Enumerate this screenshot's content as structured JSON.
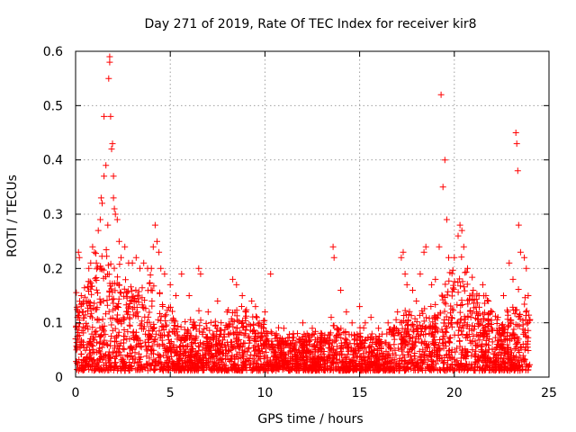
{
  "chart_data": {
    "type": "scatter",
    "title": "Day 271 of 2019, Rate Of TEC Index for receiver kir8",
    "xlabel": "GPS time / hours",
    "ylabel": "ROTI / TECUs",
    "xlim": [
      0,
      25
    ],
    "ylim": [
      0,
      0.6
    ],
    "xticks": [
      0,
      5,
      10,
      15,
      20,
      25
    ],
    "yticks": [
      0,
      0.1,
      0.2,
      0.3,
      0.4,
      0.5,
      0.6
    ],
    "xtick_labels": [
      "0",
      "5",
      "10",
      "15",
      "20",
      "25"
    ],
    "ytick_labels": [
      "0",
      "0.1",
      "0.2",
      "0.3",
      "0.4",
      "0.5",
      "0.6"
    ],
    "grid": true,
    "marker": "+",
    "color": "#ff0000",
    "series": [
      {
        "name": "ROTI",
        "points": [
          [
            0.1,
            0.11
          ],
          [
            0.15,
            0.23
          ],
          [
            0.2,
            0.22
          ],
          [
            0.3,
            0.15
          ],
          [
            0.4,
            0.12
          ],
          [
            0.5,
            0.09
          ],
          [
            0.6,
            0.14
          ],
          [
            0.7,
            0.2
          ],
          [
            0.8,
            0.21
          ],
          [
            0.9,
            0.24
          ],
          [
            1.0,
            0.23
          ],
          [
            1.1,
            0.21
          ],
          [
            1.2,
            0.27
          ],
          [
            1.3,
            0.29
          ],
          [
            1.35,
            0.33
          ],
          [
            1.4,
            0.32
          ],
          [
            1.5,
            0.37
          ],
          [
            1.5,
            0.48
          ],
          [
            1.6,
            0.39
          ],
          [
            1.7,
            0.28
          ],
          [
            1.75,
            0.55
          ],
          [
            1.8,
            0.59
          ],
          [
            1.8,
            0.58
          ],
          [
            1.85,
            0.48
          ],
          [
            1.9,
            0.42
          ],
          [
            1.95,
            0.43
          ],
          [
            2.0,
            0.33
          ],
          [
            2.0,
            0.37
          ],
          [
            2.05,
            0.31
          ],
          [
            2.1,
            0.3
          ],
          [
            2.2,
            0.29
          ],
          [
            2.3,
            0.25
          ],
          [
            2.4,
            0.22
          ],
          [
            2.6,
            0.24
          ],
          [
            2.8,
            0.21
          ],
          [
            3.0,
            0.21
          ],
          [
            3.2,
            0.22
          ],
          [
            3.4,
            0.2
          ],
          [
            3.6,
            0.21
          ],
          [
            3.8,
            0.2
          ],
          [
            4.0,
            0.2
          ],
          [
            4.1,
            0.24
          ],
          [
            4.2,
            0.28
          ],
          [
            4.3,
            0.25
          ],
          [
            4.4,
            0.23
          ],
          [
            4.5,
            0.2
          ],
          [
            4.7,
            0.19
          ],
          [
            5.0,
            0.17
          ],
          [
            5.3,
            0.15
          ],
          [
            5.6,
            0.19
          ],
          [
            6.0,
            0.15
          ],
          [
            6.5,
            0.2
          ],
          [
            6.6,
            0.19
          ],
          [
            7.0,
            0.12
          ],
          [
            7.5,
            0.14
          ],
          [
            8.0,
            0.12
          ],
          [
            8.3,
            0.18
          ],
          [
            8.5,
            0.17
          ],
          [
            8.8,
            0.15
          ],
          [
            9.0,
            0.12
          ],
          [
            9.3,
            0.14
          ],
          [
            9.5,
            0.13
          ],
          [
            9.7,
            0.1
          ],
          [
            10.0,
            0.12
          ],
          [
            10.3,
            0.19
          ],
          [
            10.6,
            0.08
          ],
          [
            11.0,
            0.09
          ],
          [
            11.5,
            0.08
          ],
          [
            12.0,
            0.1
          ],
          [
            12.5,
            0.09
          ],
          [
            13.0,
            0.08
          ],
          [
            13.5,
            0.11
          ],
          [
            13.6,
            0.24
          ],
          [
            13.65,
            0.22
          ],
          [
            13.8,
            0.09
          ],
          [
            14.0,
            0.16
          ],
          [
            14.3,
            0.12
          ],
          [
            14.6,
            0.1
          ],
          [
            15.0,
            0.13
          ],
          [
            15.3,
            0.1
          ],
          [
            15.6,
            0.11
          ],
          [
            16.0,
            0.09
          ],
          [
            16.5,
            0.1
          ],
          [
            17.0,
            0.12
          ],
          [
            17.2,
            0.22
          ],
          [
            17.3,
            0.23
          ],
          [
            17.4,
            0.19
          ],
          [
            17.5,
            0.17
          ],
          [
            17.8,
            0.16
          ],
          [
            18.0,
            0.14
          ],
          [
            18.2,
            0.19
          ],
          [
            18.4,
            0.23
          ],
          [
            18.5,
            0.24
          ],
          [
            18.8,
            0.17
          ],
          [
            19.0,
            0.18
          ],
          [
            19.2,
            0.24
          ],
          [
            19.3,
            0.52
          ],
          [
            19.4,
            0.35
          ],
          [
            19.5,
            0.4
          ],
          [
            19.6,
            0.29
          ],
          [
            19.7,
            0.22
          ],
          [
            20.0,
            0.22
          ],
          [
            20.2,
            0.26
          ],
          [
            20.3,
            0.28
          ],
          [
            20.4,
            0.27
          ],
          [
            20.5,
            0.24
          ],
          [
            20.7,
            0.2
          ],
          [
            21.0,
            0.16
          ],
          [
            21.3,
            0.15
          ],
          [
            21.5,
            0.17
          ],
          [
            21.8,
            0.14
          ],
          [
            22.0,
            0.12
          ],
          [
            22.3,
            0.11
          ],
          [
            22.6,
            0.15
          ],
          [
            22.9,
            0.21
          ],
          [
            23.1,
            0.18
          ],
          [
            23.25,
            0.45
          ],
          [
            23.3,
            0.43
          ],
          [
            23.35,
            0.38
          ],
          [
            23.4,
            0.28
          ],
          [
            23.5,
            0.23
          ],
          [
            23.7,
            0.22
          ],
          [
            23.8,
            0.2
          ],
          [
            23.9,
            0.15
          ]
        ]
      }
    ],
    "density_envelope": {
      "x_hours": [
        0,
        0.5,
        1,
        1.5,
        2,
        2.5,
        3,
        3.5,
        4,
        4.5,
        5,
        5.5,
        6,
        6.5,
        7,
        7.5,
        8,
        8.5,
        9,
        9.5,
        10,
        10.5,
        11,
        11.5,
        12,
        12.5,
        13,
        13.5,
        14,
        14.5,
        15,
        15.5,
        16,
        16.5,
        17,
        17.5,
        18,
        18.5,
        19,
        19.5,
        20,
        20.5,
        21,
        21.5,
        22,
        22.5,
        23,
        23.5,
        24
      ],
      "roti_upper": [
        0.14,
        0.13,
        0.17,
        0.2,
        0.19,
        0.16,
        0.15,
        0.14,
        0.15,
        0.13,
        0.1,
        0.08,
        0.08,
        0.09,
        0.07,
        0.08,
        0.09,
        0.1,
        0.1,
        0.09,
        0.08,
        0.07,
        0.06,
        0.06,
        0.06,
        0.06,
        0.06,
        0.07,
        0.07,
        0.06,
        0.07,
        0.06,
        0.06,
        0.07,
        0.08,
        0.1,
        0.09,
        0.1,
        0.11,
        0.14,
        0.17,
        0.18,
        0.14,
        0.12,
        0.1,
        0.08,
        0.11,
        0.13,
        0.1
      ]
    }
  }
}
